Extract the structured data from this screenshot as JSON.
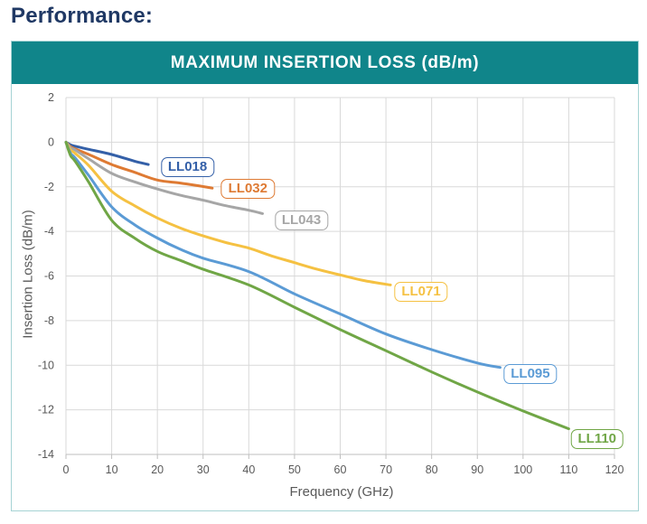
{
  "page": {
    "heading": "Performance:"
  },
  "chart_header": {
    "title": "MAXIMUM INSERTION LOSS (dB/m)"
  },
  "chart_data": {
    "type": "line",
    "title": "MAXIMUM INSERTION LOSS (dB/m)",
    "xlabel": "Frequency (GHz)",
    "ylabel": "Insertion Loss (dB/m)",
    "xlim": [
      0,
      120
    ],
    "ylim": [
      -14,
      2
    ],
    "x_ticks": [
      0,
      10,
      20,
      30,
      40,
      50,
      60,
      70,
      80,
      90,
      100,
      110,
      120
    ],
    "y_ticks": [
      2,
      0,
      -2,
      -4,
      -6,
      -8,
      -10,
      -12,
      -14
    ],
    "grid": true,
    "legend_position": "inline-labels",
    "colors": {
      "grid": "#D9D9D9",
      "axis": "#BFBFBF",
      "tick_text": "#595959",
      "header_teal": "#10858A",
      "card_border": "#A6D3D4",
      "heading_navy": "#1F3864"
    },
    "series": [
      {
        "name": "LL018",
        "color": "#3460A8",
        "label_pos": {
          "x": 26.6,
          "y": -1.1
        },
        "points": [
          [
            0,
            0
          ],
          [
            1,
            -0.12
          ],
          [
            2,
            -0.18
          ],
          [
            5,
            -0.32
          ],
          [
            10,
            -0.55
          ],
          [
            15,
            -0.85
          ],
          [
            18,
            -1.0
          ]
        ]
      },
      {
        "name": "LL032",
        "color": "#DE7A33",
        "label_pos": {
          "x": 39.8,
          "y": -2.1
        },
        "points": [
          [
            0,
            0
          ],
          [
            1,
            -0.2
          ],
          [
            2,
            -0.3
          ],
          [
            5,
            -0.55
          ],
          [
            10,
            -1.0
          ],
          [
            15,
            -1.35
          ],
          [
            20,
            -1.7
          ],
          [
            25,
            -1.83
          ],
          [
            30,
            -1.99
          ],
          [
            32,
            -2.06
          ]
        ]
      },
      {
        "name": "LL043",
        "color": "#A6A6A6",
        "label_pos": {
          "x": 51.5,
          "y": -3.5
        },
        "points": [
          [
            0,
            0
          ],
          [
            1,
            -0.25
          ],
          [
            2,
            -0.35
          ],
          [
            5,
            -0.75
          ],
          [
            10,
            -1.4
          ],
          [
            15,
            -1.78
          ],
          [
            20,
            -2.1
          ],
          [
            25,
            -2.38
          ],
          [
            30,
            -2.6
          ],
          [
            35,
            -2.85
          ],
          [
            40,
            -3.05
          ],
          [
            43,
            -3.2
          ]
        ]
      },
      {
        "name": "LL071",
        "color": "#F5C142",
        "label_pos": {
          "x": 77.7,
          "y": -6.7
        },
        "points": [
          [
            0,
            0
          ],
          [
            1,
            -0.35
          ],
          [
            2,
            -0.5
          ],
          [
            5,
            -1.05
          ],
          [
            10,
            -2.2
          ],
          [
            15,
            -2.85
          ],
          [
            20,
            -3.4
          ],
          [
            25,
            -3.85
          ],
          [
            30,
            -4.2
          ],
          [
            35,
            -4.5
          ],
          [
            40,
            -4.75
          ],
          [
            45,
            -5.1
          ],
          [
            50,
            -5.4
          ],
          [
            55,
            -5.7
          ],
          [
            60,
            -5.95
          ],
          [
            65,
            -6.2
          ],
          [
            71,
            -6.4
          ]
        ]
      },
      {
        "name": "LL095",
        "color": "#5B9BD5",
        "label_pos": {
          "x": 101.6,
          "y": -10.4
        },
        "points": [
          [
            0,
            0
          ],
          [
            1,
            -0.5
          ],
          [
            2,
            -0.7
          ],
          [
            5,
            -1.5
          ],
          [
            10,
            -2.9
          ],
          [
            15,
            -3.7
          ],
          [
            20,
            -4.3
          ],
          [
            25,
            -4.8
          ],
          [
            30,
            -5.2
          ],
          [
            40,
            -5.8
          ],
          [
            50,
            -6.8
          ],
          [
            60,
            -7.7
          ],
          [
            70,
            -8.6
          ],
          [
            80,
            -9.3
          ],
          [
            90,
            -9.9
          ],
          [
            95,
            -10.1
          ]
        ]
      },
      {
        "name": "LL110",
        "color": "#70A646",
        "label_pos": {
          "x": 116.2,
          "y": -13.3
        },
        "points": [
          [
            0,
            0
          ],
          [
            1,
            -0.6
          ],
          [
            2,
            -0.85
          ],
          [
            5,
            -1.8
          ],
          [
            10,
            -3.5
          ],
          [
            15,
            -4.3
          ],
          [
            20,
            -4.9
          ],
          [
            25,
            -5.3
          ],
          [
            30,
            -5.7
          ],
          [
            40,
            -6.4
          ],
          [
            50,
            -7.4
          ],
          [
            60,
            -8.4
          ],
          [
            70,
            -9.35
          ],
          [
            80,
            -10.3
          ],
          [
            90,
            -11.2
          ],
          [
            100,
            -12.05
          ],
          [
            110,
            -12.85
          ]
        ]
      }
    ]
  }
}
